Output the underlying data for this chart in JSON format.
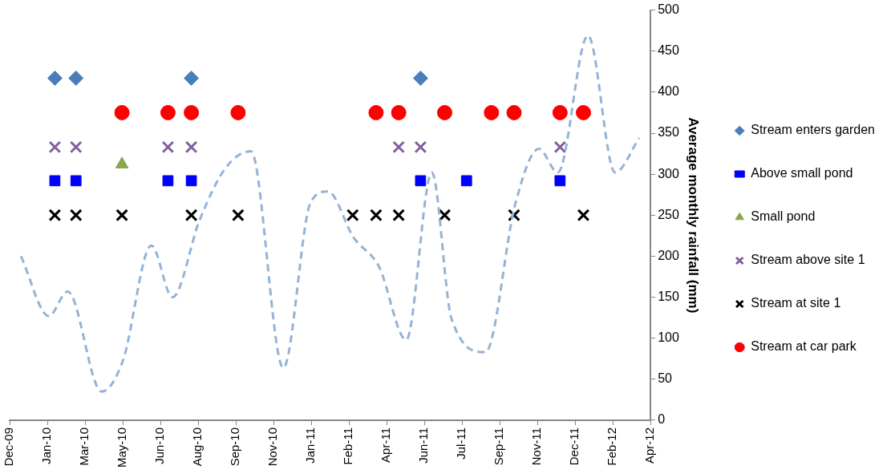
{
  "chart_data": {
    "type": "scatter",
    "ylabel": "Average monthly rainfall (mm)",
    "xlim": [
      "2009-12-04",
      "2012-04-02"
    ],
    "xticks": [
      {
        "value": "2009-12-04",
        "label": "Dec-09"
      },
      {
        "value": "2010-01-23",
        "label": "Jan-10"
      },
      {
        "value": "2010-03-14",
        "label": "Mar-10"
      },
      {
        "value": "2010-05-03",
        "label": "May-10"
      },
      {
        "value": "2010-06-22",
        "label": "Jun-10"
      },
      {
        "value": "2010-08-11",
        "label": "Aug-10"
      },
      {
        "value": "2010-09-30",
        "label": "Sep-10"
      },
      {
        "value": "2010-11-19",
        "label": "Nov-10"
      },
      {
        "value": "2011-01-08",
        "label": "Jan-11"
      },
      {
        "value": "2011-02-27",
        "label": "Feb-11"
      },
      {
        "value": "2011-04-18",
        "label": "Apr-11"
      },
      {
        "value": "2011-06-07",
        "label": "Jun-11"
      },
      {
        "value": "2011-07-27",
        "label": "Jul-11"
      },
      {
        "value": "2011-09-15",
        "label": "Sep-11"
      },
      {
        "value": "2011-11-04",
        "label": "Nov-11"
      },
      {
        "value": "2011-12-24",
        "label": "Dec-11"
      },
      {
        "value": "2012-02-12",
        "label": "Feb-12"
      },
      {
        "value": "2012-04-02",
        "label": "Apr-12"
      }
    ],
    "ylim": [
      0,
      500
    ],
    "yticks": [
      0,
      50,
      100,
      150,
      200,
      250,
      300,
      350,
      400,
      450,
      500
    ],
    "grid": false,
    "legend": "right",
    "series": [
      {
        "type": "line",
        "color": "#95b3d7",
        "line_style": "dashed",
        "marker": "none",
        "x": [
          "2009-12-19",
          "2010-01-25",
          "2010-02-19",
          "2010-04-05",
          "2010-05-03",
          "2010-06-10",
          "2010-07-08",
          "2010-08-13",
          "2010-09-16",
          "2010-10-20",
          "2010-12-02",
          "2011-01-07",
          "2011-01-30",
          "2011-03-05",
          "2011-04-08",
          "2011-05-14",
          "2011-06-17",
          "2011-07-13",
          "2011-08-27",
          "2011-10-06",
          "2011-11-06",
          "2011-12-01",
          "2012-01-10",
          "2012-02-15",
          "2012-03-18"
        ],
        "values": [
          200,
          127,
          157,
          35,
          72,
          213,
          150,
          244,
          307,
          328,
          64,
          265,
          279,
          223,
          187,
          98,
          302,
          124,
          83,
          265,
          331,
          302,
          469,
          302,
          344
        ]
      },
      {
        "name": "Stream enters garden",
        "color": "#4a7ebb",
        "marker": "diamond",
        "x": [
          "2010-02-02",
          "2010-03-02",
          "2010-08-02",
          "2011-06-02"
        ],
        "values": [
          417,
          417,
          417,
          417
        ]
      },
      {
        "name": "Above small pond",
        "color": "#0000ff",
        "marker": "square",
        "x": [
          "2010-02-02",
          "2010-03-02",
          "2010-07-02",
          "2010-08-02",
          "2011-06-02",
          "2011-08-02",
          "2011-12-04"
        ],
        "values": [
          292,
          292,
          292,
          292,
          292,
          292,
          292
        ]
      },
      {
        "name": "Small pond",
        "color": "#8aa64e",
        "marker": "triangle",
        "x": [
          "2010-05-02"
        ],
        "values": [
          312
        ]
      },
      {
        "name": "Stream above site 1",
        "color": "#7f5f9f",
        "marker": "cross",
        "x": [
          "2010-02-02",
          "2010-03-02",
          "2010-07-02",
          "2010-08-02",
          "2011-05-04",
          "2011-06-02",
          "2011-12-04"
        ],
        "values": [
          333,
          333,
          333,
          333,
          333,
          333,
          333
        ]
      },
      {
        "name": "Stream at site 1",
        "color": "#000000",
        "marker": "cross",
        "x": [
          "2010-02-02",
          "2010-03-02",
          "2010-05-02",
          "2010-08-02",
          "2010-10-03",
          "2011-03-04",
          "2011-04-04",
          "2011-05-04",
          "2011-07-04",
          "2011-10-04",
          "2012-01-04"
        ],
        "values": [
          250,
          250,
          250,
          250,
          250,
          250,
          250,
          250,
          250,
          250,
          250
        ]
      },
      {
        "name": "Stream at car park",
        "color": "#ff0000",
        "marker": "circle",
        "x": [
          "2010-05-02",
          "2010-07-02",
          "2010-08-02",
          "2010-10-03",
          "2011-04-04",
          "2011-05-04",
          "2011-07-04",
          "2011-09-04",
          "2011-10-04",
          "2011-12-04",
          "2012-01-04"
        ],
        "values": [
          375,
          375,
          375,
          375,
          375,
          375,
          375,
          375,
          375,
          375,
          375
        ]
      }
    ]
  }
}
